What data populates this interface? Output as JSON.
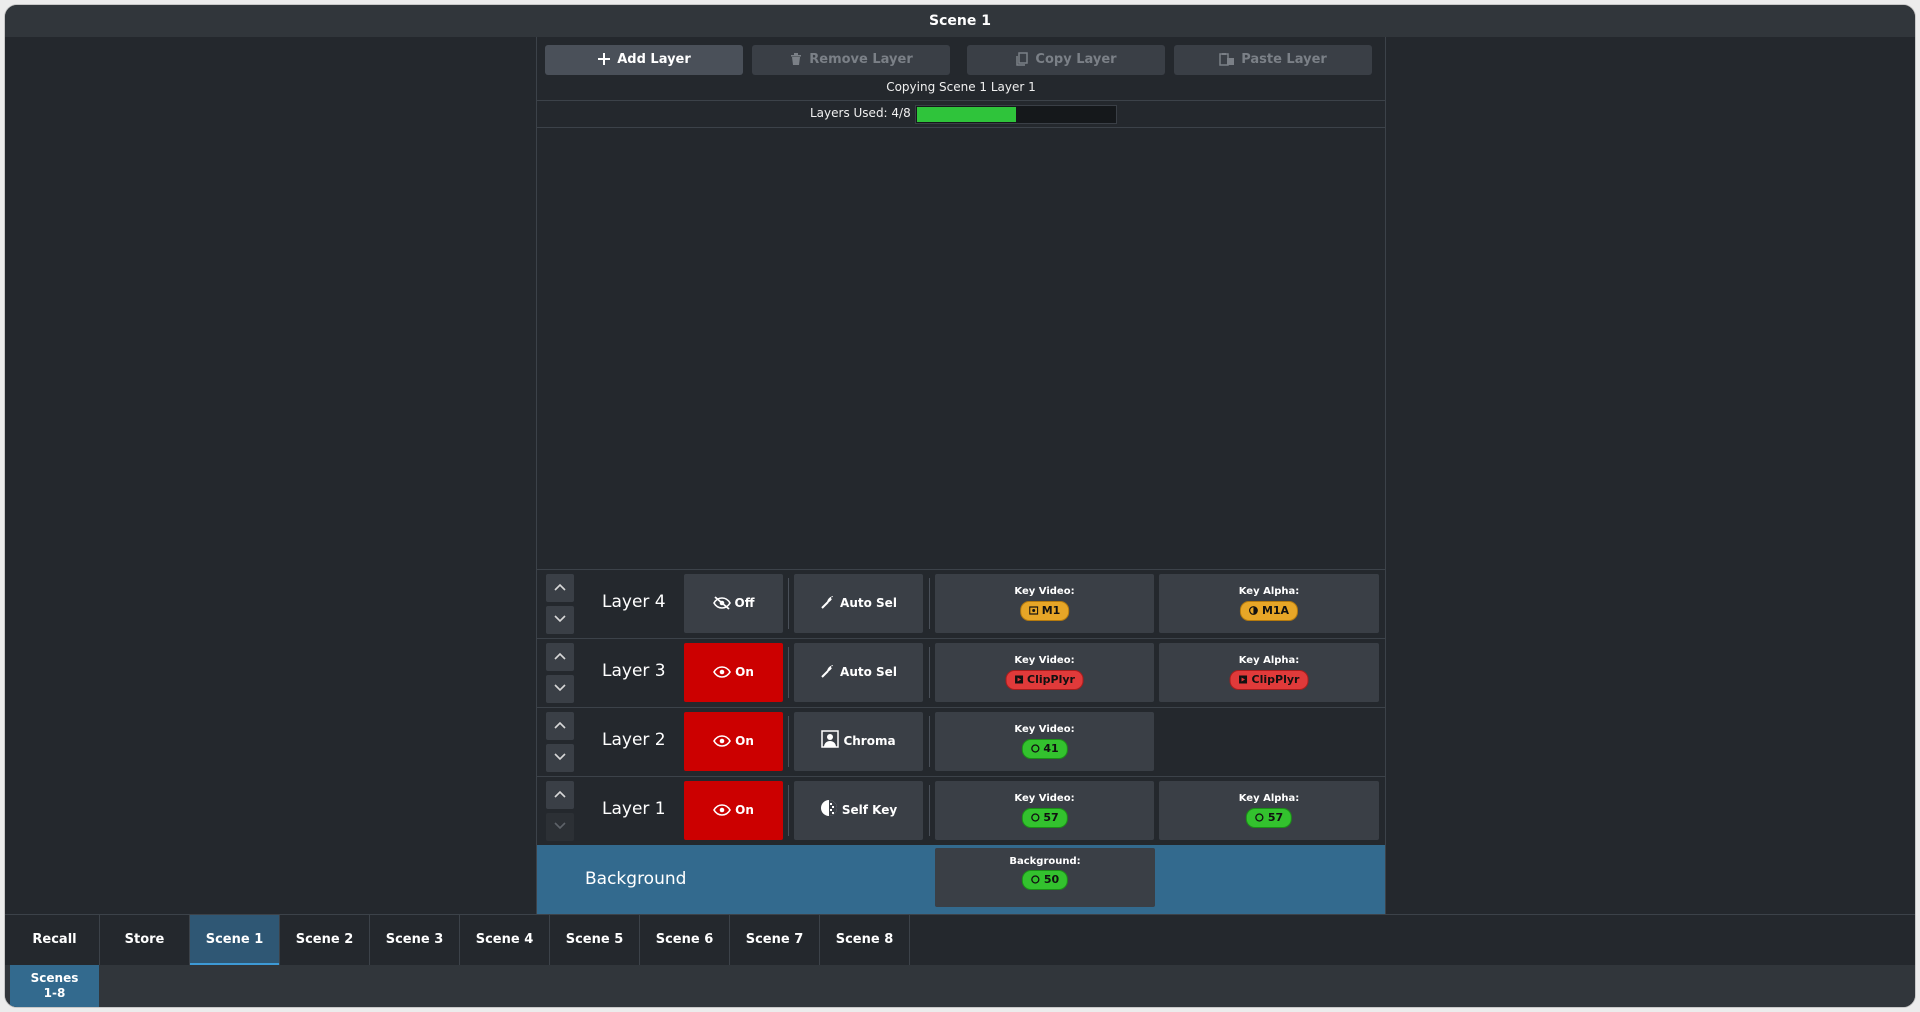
{
  "window": {
    "title": "Scene 1"
  },
  "toolbar": {
    "add_label": "Add Layer",
    "remove_label": "Remove Layer",
    "copy_label": "Copy Layer",
    "paste_label": "Paste Layer"
  },
  "status": {
    "copying": "Copying Scene 1 Layer 1"
  },
  "usage": {
    "label": "Layers Used: 4/8",
    "used": 4,
    "total": 8,
    "color": "#2fc43b"
  },
  "layers": [
    {
      "name": "Layer 4",
      "visibility": "Off",
      "mode": "Auto Sel",
      "mode_icon": "auto-select-icon",
      "key_video_label": "Key Video:",
      "key_video": "M1",
      "key_video_color": "orange",
      "key_alpha_label": "Key Alpha:",
      "key_alpha": "M1A",
      "key_alpha_color": "orange"
    },
    {
      "name": "Layer 3",
      "visibility": "On",
      "mode": "Auto Sel",
      "mode_icon": "auto-select-icon",
      "key_video_label": "Key Video:",
      "key_video": "ClipPlyr",
      "key_video_color": "red",
      "key_alpha_label": "Key Alpha:",
      "key_alpha": "ClipPlyr",
      "key_alpha_color": "red"
    },
    {
      "name": "Layer 2",
      "visibility": "On",
      "mode": "Chroma",
      "mode_icon": "chroma-key-icon",
      "key_video_label": "Key Video:",
      "key_video": "41",
      "key_video_color": "green"
    },
    {
      "name": "Layer 1",
      "visibility": "On",
      "mode": "Self Key",
      "mode_icon": "self-key-icon",
      "key_video_label": "Key Video:",
      "key_video": "57",
      "key_video_color": "green",
      "key_alpha_label": "Key Alpha:",
      "key_alpha": "57",
      "key_alpha_color": "green"
    }
  ],
  "background": {
    "name": "Background",
    "source_label": "Background:",
    "source": "50",
    "source_color": "green"
  },
  "tabs": [
    "Recall",
    "Store",
    "Scene 1",
    "Scene 2",
    "Scene 3",
    "Scene 4",
    "Scene 5",
    "Scene 6",
    "Scene 7",
    "Scene 8"
  ],
  "active_tab": "Scene 1",
  "subtabs": {
    "line1": "Scenes",
    "line2": "1-8"
  }
}
